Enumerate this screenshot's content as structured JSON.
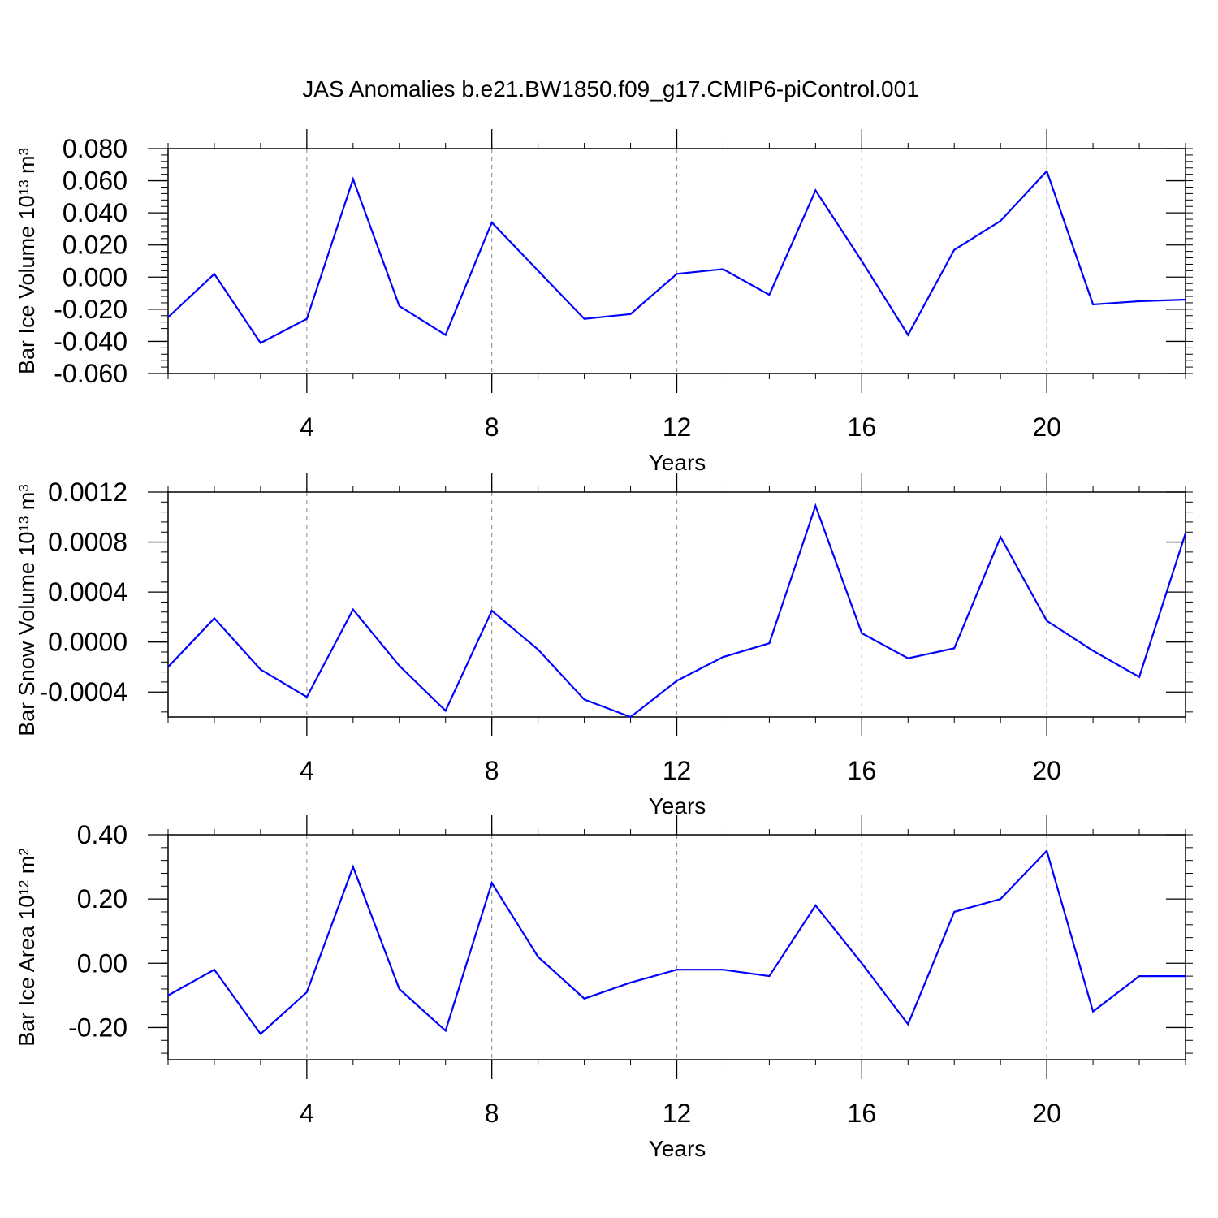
{
  "title": "JAS Anomalies b.e21.BW1850.f09_g17.CMIP6-piControl.001",
  "colors": {
    "line": "#0000ff",
    "axis": "#000000",
    "grid": "#999999"
  },
  "chart_data": [
    {
      "type": "line",
      "ylabel": "Bar Ice Volume 10",
      "ylabel_exp": "13",
      "ylabel_unit": " m",
      "ylabel_unit_exp": "3",
      "xlabel": "Years",
      "xlim": [
        1,
        23
      ],
      "ylim": [
        -0.06,
        0.08
      ],
      "yticks": [
        -0.06,
        -0.04,
        -0.02,
        0.0,
        0.02,
        0.04,
        0.06,
        0.08
      ],
      "ytick_labels": [
        "-0.060",
        "-0.040",
        "-0.020",
        "0.000",
        "0.020",
        "0.040",
        "0.060",
        "0.080"
      ],
      "xticks": [
        4,
        8,
        12,
        16,
        20
      ],
      "xtick_labels": [
        "4",
        "8",
        "12",
        "16",
        "20"
      ],
      "grid": "vertical dashed at major x ticks",
      "x": [
        1,
        2,
        3,
        4,
        5,
        6,
        7,
        8,
        9,
        10,
        11,
        12,
        13,
        14,
        15,
        16,
        17,
        18,
        19,
        20,
        21,
        22,
        23
      ],
      "values": [
        -0.025,
        0.002,
        -0.041,
        -0.026,
        0.061,
        -0.018,
        -0.036,
        0.034,
        0.004,
        -0.026,
        -0.023,
        0.002,
        0.005,
        -0.011,
        0.054,
        0.01,
        -0.036,
        0.017,
        0.035,
        0.066,
        -0.017,
        -0.015,
        -0.014
      ]
    },
    {
      "type": "line",
      "ylabel": "Bar Snow Volume 10",
      "ylabel_exp": "13",
      "ylabel_unit": " m",
      "ylabel_unit_exp": "3",
      "xlabel": "Years",
      "xlim": [
        1,
        23
      ],
      "ylim": [
        -0.0006,
        0.0012
      ],
      "yticks": [
        -0.0004,
        0.0,
        0.0004,
        0.0008,
        0.0012
      ],
      "ytick_labels": [
        "-0.0004",
        "0.0000",
        "0.0004",
        "0.0008",
        "0.0012"
      ],
      "xticks": [
        4,
        8,
        12,
        16,
        20
      ],
      "xtick_labels": [
        "4",
        "8",
        "12",
        "16",
        "20"
      ],
      "grid": "vertical dashed at major x ticks",
      "x": [
        1,
        2,
        3,
        4,
        5,
        6,
        7,
        8,
        9,
        10,
        11,
        12,
        13,
        14,
        15,
        16,
        17,
        18,
        19,
        20,
        21,
        22,
        23
      ],
      "values": [
        -0.0002,
        0.00019,
        -0.00022,
        -0.00044,
        0.00026,
        -0.00019,
        -0.00055,
        0.00025,
        -6e-05,
        -0.00046,
        -0.0006,
        -0.00031,
        -0.00012,
        -1e-05,
        0.00109,
        7e-05,
        -0.00013,
        -5e-05,
        0.00084,
        0.00017,
        -7e-05,
        -0.00028,
        0.00087
      ]
    },
    {
      "type": "line",
      "ylabel": "Bar Ice Area 10",
      "ylabel_exp": "12",
      "ylabel_unit": " m",
      "ylabel_unit_exp": "2",
      "xlabel": "Years",
      "xlim": [
        1,
        23
      ],
      "ylim": [
        -0.3,
        0.4
      ],
      "yticks": [
        -0.2,
        0.0,
        0.2,
        0.4
      ],
      "ytick_labels": [
        "-0.20",
        "0.00",
        "0.20",
        "0.40"
      ],
      "xticks": [
        4,
        8,
        12,
        16,
        20
      ],
      "xtick_labels": [
        "4",
        "8",
        "12",
        "16",
        "20"
      ],
      "grid": "vertical dashed at major x ticks",
      "x": [
        1,
        2,
        3,
        4,
        5,
        6,
        7,
        8,
        9,
        10,
        11,
        12,
        13,
        14,
        15,
        16,
        17,
        18,
        19,
        20,
        21,
        22,
        23
      ],
      "values": [
        -0.1,
        -0.02,
        -0.22,
        -0.09,
        0.3,
        -0.08,
        -0.21,
        0.25,
        0.02,
        -0.11,
        -0.06,
        -0.02,
        -0.02,
        -0.04,
        0.18,
        0.0,
        -0.19,
        0.16,
        0.2,
        0.35,
        -0.15,
        -0.04,
        -0.04
      ]
    }
  ]
}
